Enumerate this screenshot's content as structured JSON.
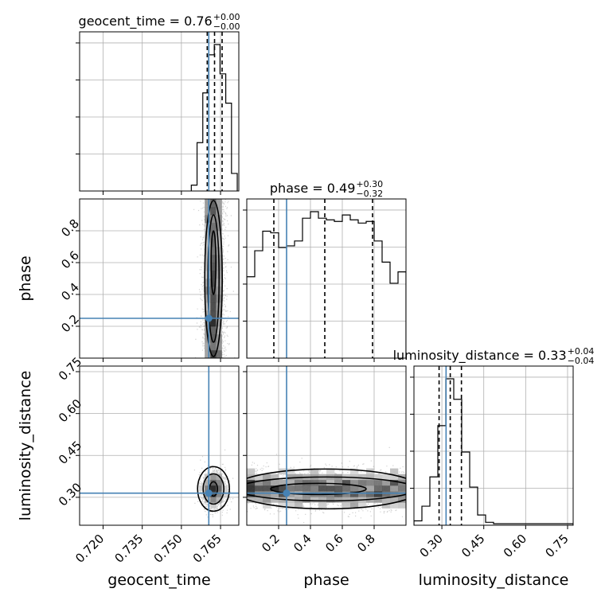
{
  "chart_data": {
    "type": "corner",
    "parameters": [
      "geocent_time",
      "phase",
      "luminosity_distance"
    ],
    "colors": {
      "truth": "#4682b4",
      "line": "#000000",
      "grid": "#b0b0b0"
    },
    "titles": {
      "geocent_time": {
        "name": "geocent_time",
        "value": "0.76",
        "plus": "+0.00",
        "minus": "−0.00"
      },
      "phase": {
        "name": "phase",
        "value": "0.49",
        "plus": "+0.30",
        "minus": "−0.32"
      },
      "luminosity_distance": {
        "name": "luminosity_distance",
        "value": "0.33",
        "plus": "+0.04",
        "minus": "−0.04"
      }
    },
    "axis_labels": {
      "geocent_time": "geocent_time",
      "phase": "phase",
      "luminosity_distance": "luminosity_distance"
    },
    "ranges": {
      "geocent_time": [
        0.711,
        0.772
      ],
      "phase": [
        0.0,
        1.0
      ],
      "luminosity_distance": [
        0.2,
        0.77
      ]
    },
    "ticks": {
      "geocent_time": [
        "0.720",
        "0.735",
        "0.750",
        "0.765"
      ],
      "phase": [
        "0.2",
        "0.4",
        "0.6",
        "0.8"
      ],
      "luminosity_distance": [
        "0.30",
        "0.45",
        "0.60",
        "0.75"
      ]
    },
    "truths": {
      "geocent_time": 0.7605,
      "phase": 0.25,
      "luminosity_distance": 0.315
    },
    "quantiles": {
      "geocent_time": [
        0.7599,
        0.7627,
        0.7656
      ],
      "phase": [
        0.17,
        0.49,
        0.79
      ],
      "luminosity_distance": [
        0.29,
        0.33,
        0.37
      ]
    },
    "histograms": {
      "geocent_time": {
        "edges": [
          0.7538,
          0.756,
          0.7582,
          0.7604,
          0.7626,
          0.7648,
          0.767,
          0.7692,
          0.7714
        ],
        "counts": [
          0.04,
          0.33,
          0.67,
          0.93,
          1.0,
          0.8,
          0.6,
          0.12
        ]
      },
      "phase": {
        "edges": [
          0.0,
          0.05,
          0.1,
          0.15,
          0.2,
          0.25,
          0.3,
          0.35,
          0.4,
          0.45,
          0.5,
          0.55,
          0.6,
          0.65,
          0.7,
          0.75,
          0.8,
          0.85,
          0.9,
          0.95,
          1.0
        ],
        "counts": [
          0.5,
          0.66,
          0.78,
          0.77,
          0.68,
          0.69,
          0.72,
          0.86,
          0.9,
          0.86,
          0.85,
          0.84,
          0.88,
          0.85,
          0.83,
          0.84,
          0.72,
          0.59,
          0.46,
          0.53
        ]
      },
      "luminosity_distance": {
        "edges": [
          0.2,
          0.2285,
          0.257,
          0.2855,
          0.314,
          0.3425,
          0.371,
          0.3995,
          0.428,
          0.4565,
          0.485,
          0.77
        ],
        "counts": [
          0.03,
          0.13,
          0.33,
          0.68,
          1.0,
          0.86,
          0.5,
          0.26,
          0.07,
          0.02,
          0.01
        ]
      }
    },
    "samples_2d": {
      "phase_vs_geocent_time": {
        "x_center": 0.7623,
        "x_sd": 0.0021,
        "y_range": [
          0.0,
          1.0
        ]
      },
      "luminosity_distance_vs_geocent_time": {
        "x_center": 0.7623,
        "x_sd": 0.0022,
        "y_center": 0.33,
        "y_sd": 0.033
      },
      "luminosity_distance_vs_phase": {
        "x_range": [
          0.0,
          1.0
        ],
        "y_center": 0.33,
        "y_sd": 0.035
      }
    }
  }
}
